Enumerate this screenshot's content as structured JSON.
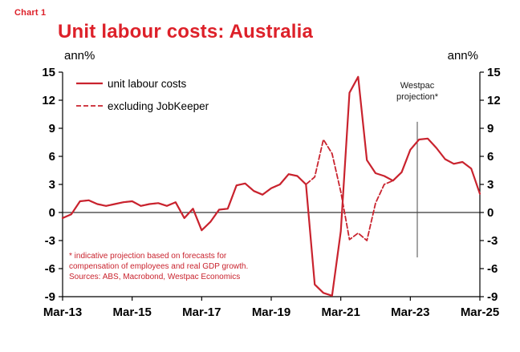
{
  "header": {
    "chart_number": "Chart 1",
    "title": "Unit labour costs: Australia"
  },
  "colors": {
    "brand_red": "#dd2029",
    "line_red": "#c9232e",
    "axis_black": "#000000",
    "annotation_line": "#4a4a4a"
  },
  "chart_data": {
    "type": "line",
    "title": "Unit labour costs: Australia",
    "ylabel_left": "ann%",
    "ylabel_right": "ann%",
    "ylim": [
      -9,
      15
    ],
    "y_ticks": [
      15,
      12,
      9,
      6,
      3,
      0,
      -3,
      -6,
      -9
    ],
    "xlim": [
      2013.25,
      2025.25
    ],
    "x_ticks": [
      {
        "year": 2013.25,
        "label": "Mar-13"
      },
      {
        "year": 2015.25,
        "label": "Mar-15"
      },
      {
        "year": 2017.25,
        "label": "Mar-17"
      },
      {
        "year": 2019.25,
        "label": "Mar-19"
      },
      {
        "year": 2021.25,
        "label": "Mar-21"
      },
      {
        "year": 2023.25,
        "label": "Mar-23"
      },
      {
        "year": 2025.25,
        "label": "Mar-25"
      }
    ],
    "grid": false,
    "legend_position": "top-left",
    "series": [
      {
        "name": "unit labour costs",
        "style": "solid",
        "color": "#c9232e",
        "x_start": 2013.25,
        "x_step": 0.25,
        "values": [
          -0.6,
          -0.2,
          1.2,
          1.3,
          0.9,
          0.7,
          0.9,
          1.1,
          1.2,
          0.7,
          0.9,
          1.0,
          0.7,
          1.1,
          -0.6,
          0.4,
          -1.9,
          -1.0,
          0.3,
          0.4,
          2.9,
          3.1,
          2.3,
          1.9,
          2.6,
          3.0,
          4.1,
          3.9,
          3.0,
          -7.7,
          -8.6,
          -8.9,
          -2.0,
          12.8,
          14.5,
          5.6,
          4.2,
          3.9,
          3.4,
          4.3,
          6.7,
          7.8,
          7.9,
          6.9,
          5.7,
          5.2,
          5.4,
          4.7,
          2.0
        ]
      },
      {
        "name": "excluding JobKeeper",
        "style": "dashed",
        "color": "#c9232e",
        "x_start": 2013.25,
        "x_step": 0.25,
        "values": [
          -0.6,
          -0.2,
          1.2,
          1.3,
          0.9,
          0.7,
          0.9,
          1.1,
          1.2,
          0.7,
          0.9,
          1.0,
          0.7,
          1.1,
          -0.6,
          0.4,
          -1.9,
          -1.0,
          0.3,
          0.4,
          2.9,
          3.1,
          2.3,
          1.9,
          2.6,
          3.0,
          4.1,
          3.9,
          3.0,
          3.8,
          7.8,
          6.3,
          2.2,
          -2.9,
          -2.2,
          -3.0,
          1.0,
          3.0,
          3.4
        ]
      }
    ],
    "annotation": {
      "label_lines": [
        "Westpac",
        "projection*"
      ],
      "x": 2023.45,
      "label_top_value": 13.3,
      "line_top_value": 9.7,
      "line_bottom_value": -4.8
    },
    "footnote_lines": [
      "* indicative projection based on forecasts for",
      "compensation of employees and real GDP growth.",
      "Sources: ABS, Macrobond, Westpac Economics"
    ]
  }
}
